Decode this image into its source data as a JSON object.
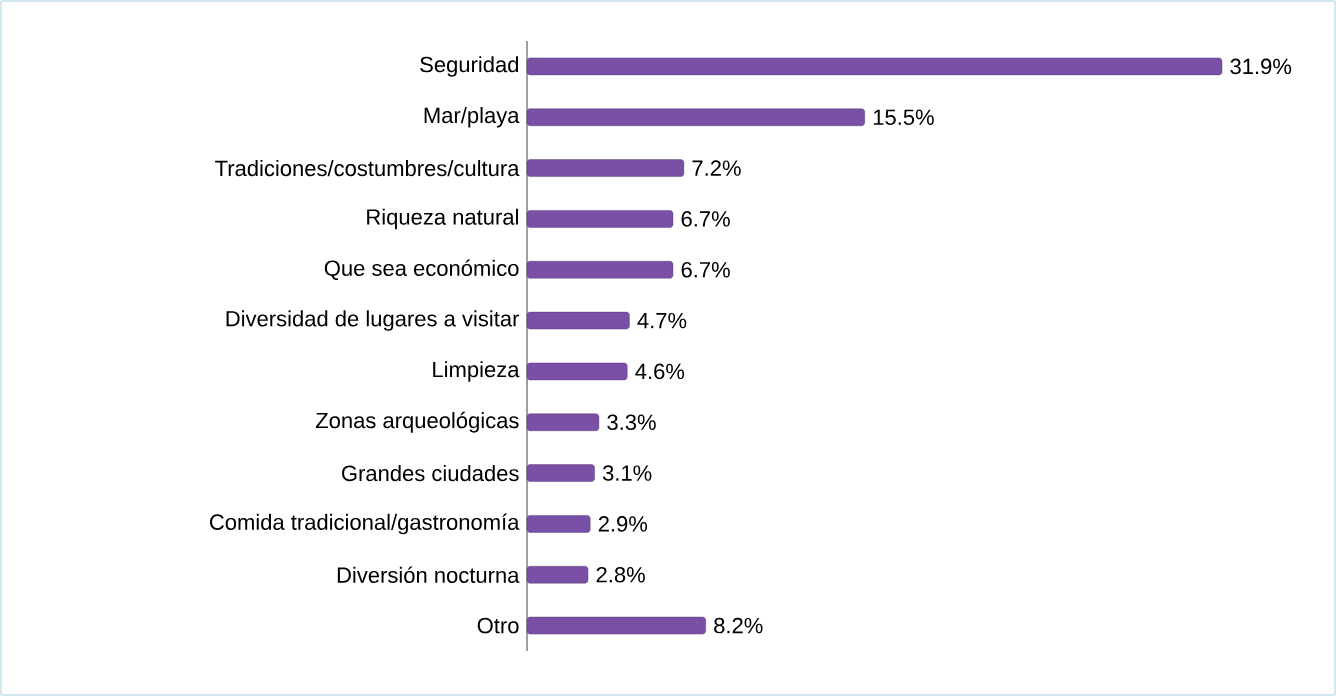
{
  "chart_data": {
    "type": "bar",
    "orientation": "horizontal",
    "categories": [
      "Seguridad",
      "Mar/playa",
      "Tradiciones/costumbres/cultura",
      "Riqueza natural",
      "Que sea económico",
      "Diversidad de lugares a visitar",
      "Limpieza",
      "Zonas arqueológicas",
      "Grandes ciudades",
      "Comida tradicional/gastronomía",
      "Diversión nocturna",
      "Otro"
    ],
    "values": [
      31.9,
      15.5,
      7.2,
      6.7,
      6.7,
      4.7,
      4.6,
      3.3,
      3.1,
      2.9,
      2.8,
      8.2
    ],
    "value_labels": [
      "31.9%",
      "15.5%",
      "7.2%",
      "6.7%",
      "6.7%",
      "4.7%",
      "4.6%",
      "3.3%",
      "3.1%",
      "2.9%",
      "2.8%",
      "8.2%"
    ],
    "color": "#7a4fa6"
  }
}
